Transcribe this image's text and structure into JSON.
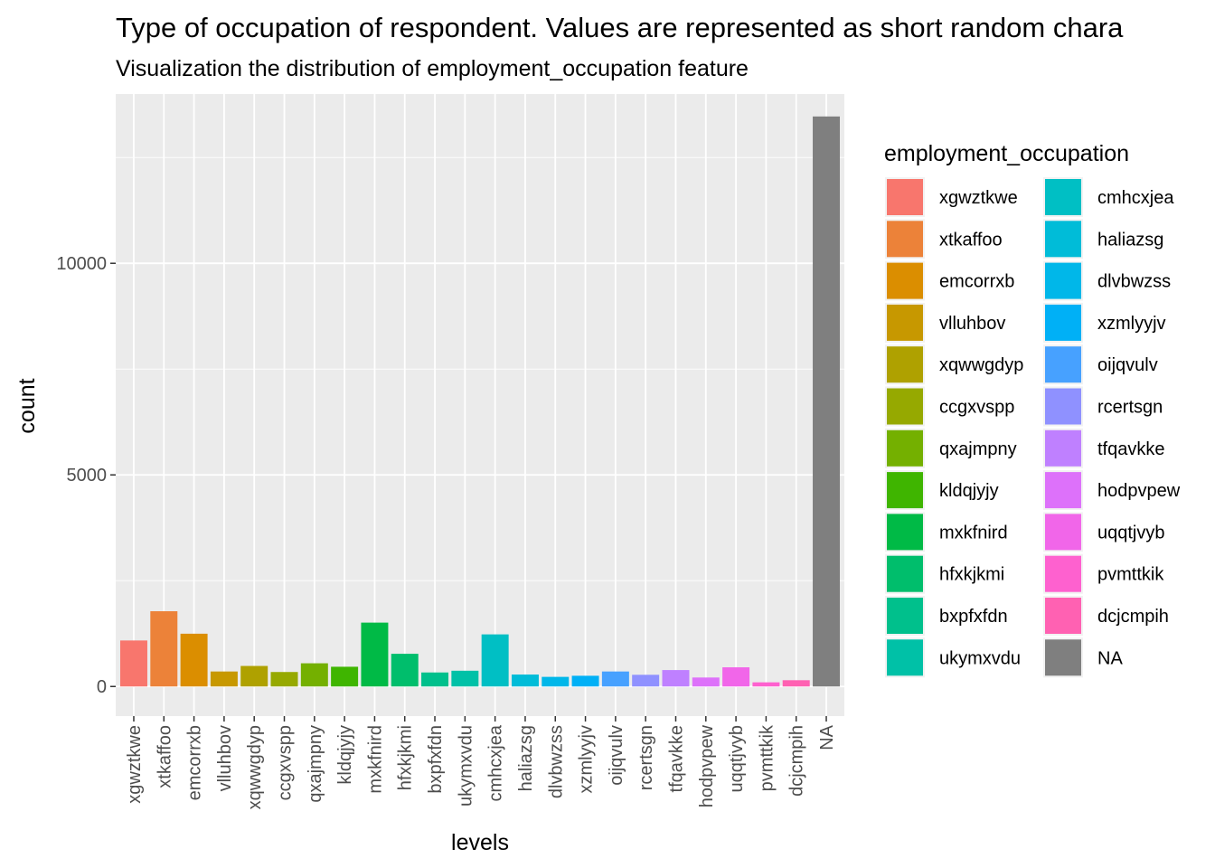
{
  "chart_data": {
    "type": "bar",
    "title": "Type of occupation of respondent. Values are represented as short random chara",
    "subtitle": "Visualization the distribution of employment_occupation feature",
    "xlabel": "levels",
    "ylabel": "count",
    "ylim": [
      -700,
      14000
    ],
    "yticks": [
      0,
      5000,
      10000
    ],
    "grid": true,
    "legend_title": "employment_occupation",
    "legend_position": "right",
    "categories": [
      "xgwztkwe",
      "xtkaffoo",
      "emcorrxb",
      "vlluhbov",
      "xqwwgdyp",
      "ccgxvspp",
      "qxajmpny",
      "kldqjyjy",
      "mxkfnird",
      "hfxkjkmi",
      "bxpfxfdn",
      "ukymxvdu",
      "cmhcxjea",
      "haliazsg",
      "dlvbwzss",
      "xzmlyyjv",
      "oijqvulv",
      "rcertsgn",
      "tfqavkke",
      "hodpvpew",
      "uqqtjvyb",
      "pvmttkik",
      "dcjcmpih",
      "NA"
    ],
    "values": [
      1087,
      1778,
      1247,
      354,
      485,
      342,
      548,
      466,
      1509,
      772,
      331,
      372,
      1231,
      282,
      227,
      253,
      354,
      276,
      388,
      212,
      453,
      98,
      148,
      13470
    ],
    "colors": [
      "#F8766D",
      "#EA8331",
      "#D89000",
      "#C09B00",
      "#A3A500",
      "#7CAE00",
      "#39B600",
      "#00BB4E",
      "#00BF7D",
      "#00C1A3",
      "#00BFC4",
      "#00BAE0",
      "#00B0F6",
      "#35A2FF",
      "#9590FF",
      "#C77CFF",
      "#E76BF3",
      "#FA62DB",
      "#FF62BC",
      "#FF6A98",
      "#808080",
      "#F8766D",
      "#EA8331",
      "#D89000"
    ]
  }
}
